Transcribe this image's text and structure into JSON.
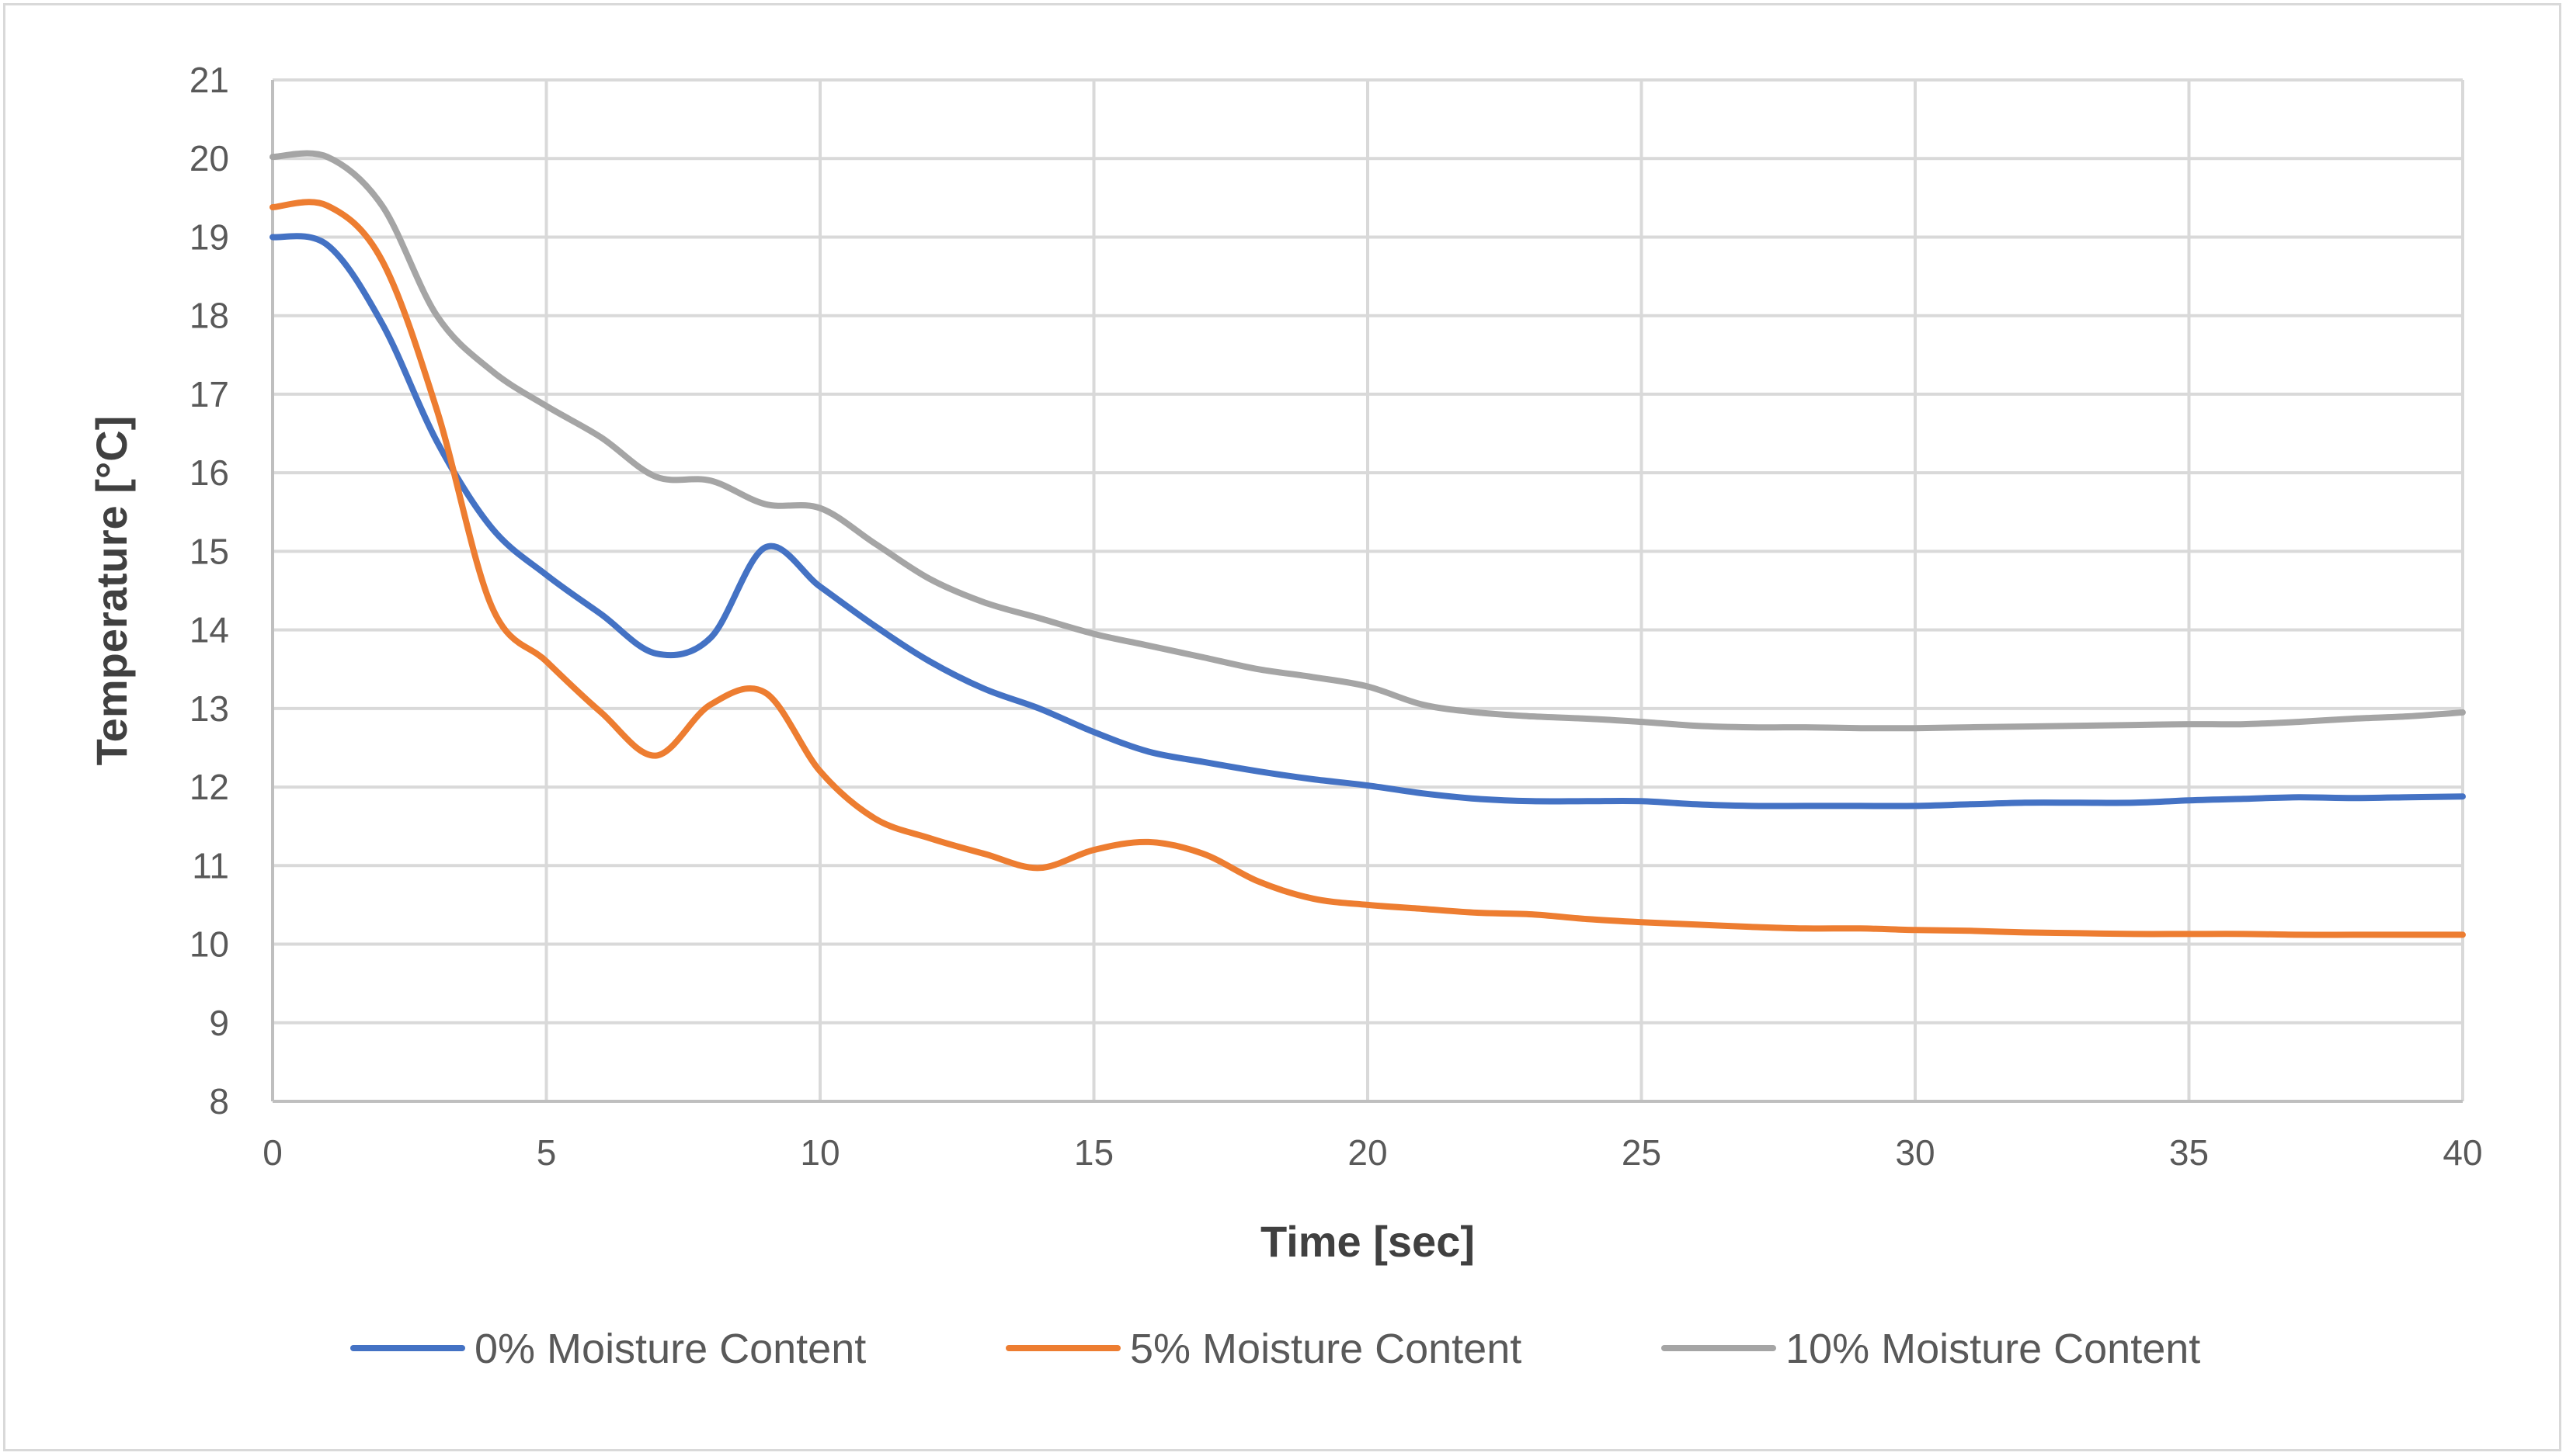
{
  "chart_data": {
    "type": "line",
    "title": "",
    "xlabel": "Time [sec]",
    "ylabel": "Temperature [°C]",
    "xlim": [
      0,
      40
    ],
    "ylim": [
      8,
      21
    ],
    "xticks": [
      0,
      5,
      10,
      15,
      20,
      25,
      30,
      35,
      40
    ],
    "yticks": [
      8,
      9,
      10,
      11,
      12,
      13,
      14,
      15,
      16,
      17,
      18,
      19,
      20,
      21
    ],
    "grid": true,
    "legend_position": "bottom",
    "x": [
      0,
      1,
      2,
      3,
      4,
      5,
      6,
      7,
      8,
      9,
      10,
      11,
      12,
      13,
      14,
      15,
      16,
      17,
      18,
      19,
      20,
      21,
      22,
      23,
      24,
      25,
      26,
      27,
      28,
      29,
      30,
      31,
      32,
      33,
      34,
      35,
      36,
      37,
      38,
      39,
      40
    ],
    "series": [
      {
        "name": "0% Moisture Content",
        "color": "#4472c4",
        "values": [
          19.0,
          18.9,
          17.9,
          16.4,
          15.3,
          14.7,
          14.2,
          13.7,
          13.9,
          15.05,
          14.55,
          14.05,
          13.6,
          13.25,
          13.0,
          12.7,
          12.45,
          12.32,
          12.2,
          12.1,
          12.02,
          11.92,
          11.85,
          11.82,
          11.82,
          11.82,
          11.78,
          11.76,
          11.76,
          11.76,
          11.76,
          11.78,
          11.8,
          11.8,
          11.8,
          11.83,
          11.85,
          11.87,
          11.86,
          11.87,
          11.88
        ]
      },
      {
        "name": "5% Moisture Content",
        "color": "#ed7d31",
        "values": [
          19.38,
          19.4,
          18.7,
          16.8,
          14.3,
          13.6,
          12.95,
          12.4,
          13.05,
          13.2,
          12.2,
          11.6,
          11.35,
          11.15,
          10.97,
          11.2,
          11.3,
          11.15,
          10.8,
          10.58,
          10.5,
          10.45,
          10.4,
          10.38,
          10.32,
          10.28,
          10.25,
          10.22,
          10.2,
          10.2,
          10.18,
          10.17,
          10.15,
          10.14,
          10.13,
          10.13,
          10.13,
          10.12,
          10.12,
          10.12,
          10.12
        ]
      },
      {
        "name": "10% Moisture Content",
        "color": "#a5a5a5",
        "values": [
          20.02,
          20.02,
          19.4,
          18.0,
          17.3,
          16.85,
          16.45,
          15.95,
          15.9,
          15.6,
          15.55,
          15.1,
          14.65,
          14.35,
          14.15,
          13.95,
          13.8,
          13.65,
          13.5,
          13.4,
          13.28,
          13.05,
          12.95,
          12.9,
          12.87,
          12.83,
          12.78,
          12.76,
          12.76,
          12.75,
          12.75,
          12.76,
          12.77,
          12.78,
          12.79,
          12.8,
          12.8,
          12.83,
          12.87,
          12.9,
          12.95
        ]
      }
    ]
  }
}
